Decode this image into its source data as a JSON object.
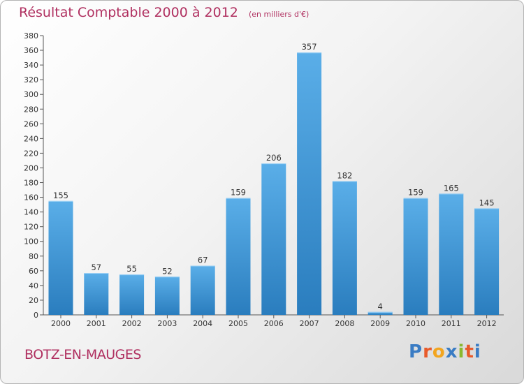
{
  "header": {
    "title": "Résultat Comptable 2000 à 2012",
    "unit_note": "(en milliers d'€)"
  },
  "footer": {
    "commune": "BOTZ-EN-MAUGES",
    "brand": "Proxiti"
  },
  "colors": {
    "title": "#b03060",
    "bar_top": "#5aaee8",
    "bar_bottom": "#2a7dbe",
    "brand_letters": [
      "#3a7cc4",
      "#e85a2a",
      "#f2a51f",
      "#3a7cc4",
      "#8ab82e",
      "#e85a2a",
      "#3a7cc4"
    ]
  },
  "chart_data": {
    "type": "bar",
    "title": "Résultat Comptable 2000 à 2012",
    "subtitle": "(en milliers d'€)",
    "xlabel": "",
    "ylabel": "",
    "categories": [
      "2000",
      "2001",
      "2002",
      "2003",
      "2004",
      "2005",
      "2006",
      "2007",
      "2008",
      "2009",
      "2010",
      "2011",
      "2012"
    ],
    "values": [
      155,
      57,
      55,
      52,
      67,
      159,
      206,
      357,
      182,
      4,
      159,
      165,
      145
    ],
    "ylim": [
      0,
      380
    ],
    "ytick_step": 20,
    "grid": false,
    "legend": "none"
  }
}
